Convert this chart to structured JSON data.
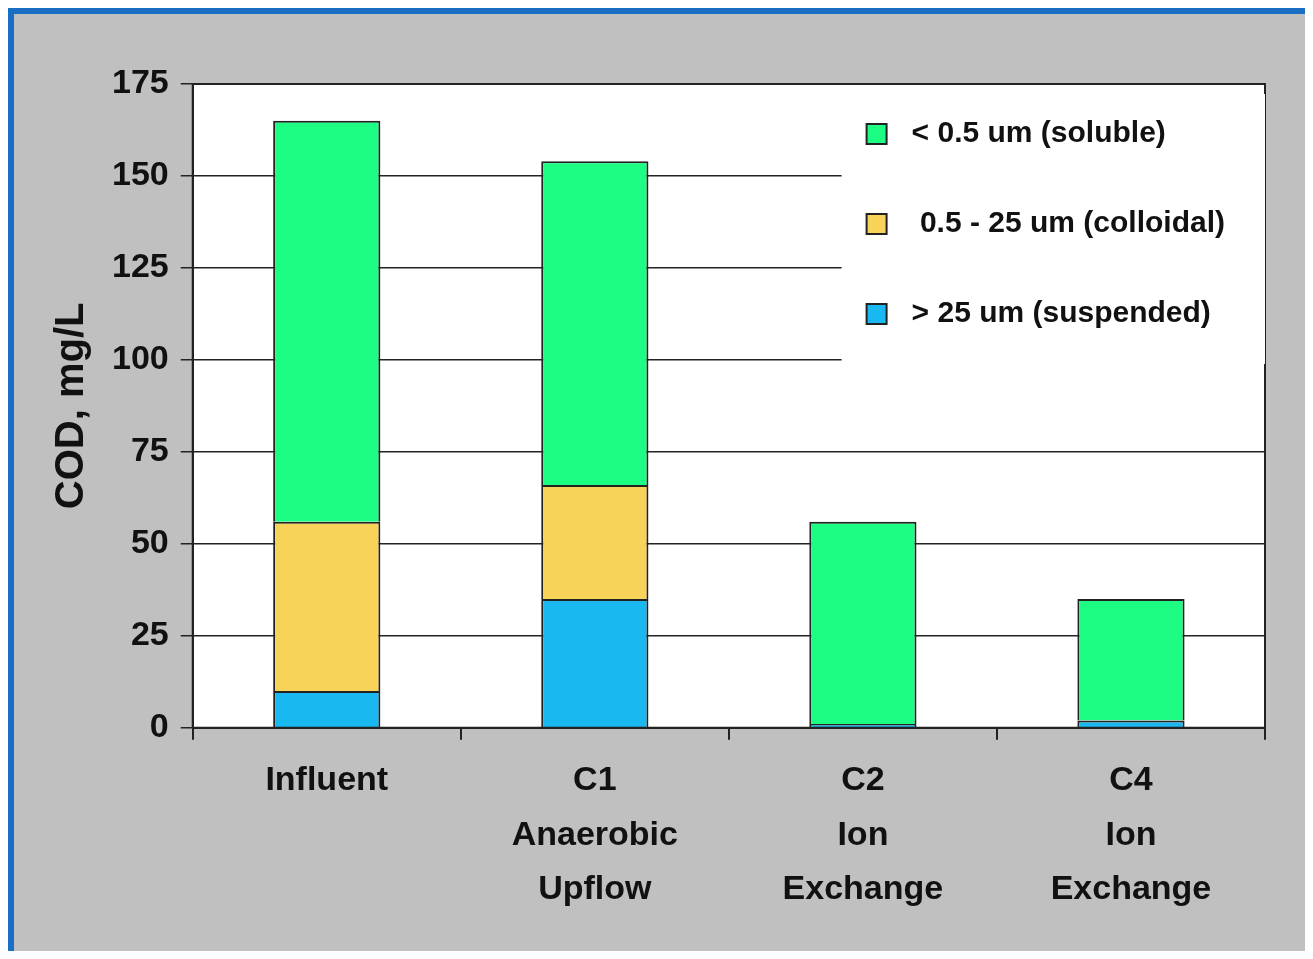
{
  "chart_data": {
    "type": "bar",
    "ylabel": "COD, mg/L",
    "categories": [
      "Influent",
      "C1\nAnaerobic\nUpflow",
      "C2\nIon\nExchange",
      "C4\nIon\nExchange"
    ],
    "stacked": true,
    "ylim": [
      0,
      175
    ],
    "yticks": [
      0,
      25,
      50,
      75,
      100,
      125,
      150,
      175
    ],
    "grid": "y",
    "legend": "top right",
    "series": [
      {
        "name": "> 25 um (suspended)",
        "color": "#1ab8f0",
        "values": [
          10,
          35,
          1,
          2
        ]
      },
      {
        "name": " 0.5 - 25 um (colloidal)",
        "color": "#f7d35a",
        "values": [
          46,
          31,
          0,
          0
        ]
      },
      {
        "name": "< 0.5 um (soluble)",
        "color": "#1dfd84",
        "values": [
          109,
          88,
          55,
          33
        ]
      }
    ]
  }
}
